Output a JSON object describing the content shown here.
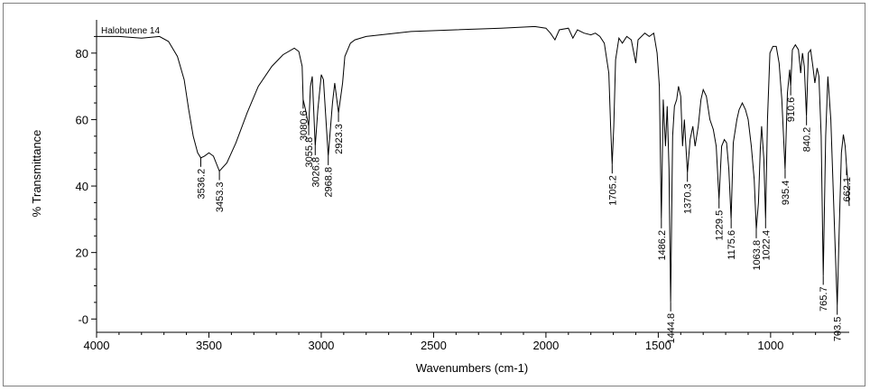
{
  "chart_data": {
    "type": "line",
    "sample_name": "Halobutene 14",
    "xlabel": "Wavenumbers (cm-1)",
    "ylabel": "% Transmittance",
    "xlim": [
      4000,
      650
    ],
    "ylim": [
      -4,
      90
    ],
    "x_ticks": [
      {
        "value": 4000,
        "label": "4000"
      },
      {
        "value": 3500,
        "label": "3500"
      },
      {
        "value": 3000,
        "label": "3000"
      },
      {
        "value": 2500,
        "label": "2500"
      },
      {
        "value": 2000,
        "label": "2000"
      },
      {
        "value": 1500,
        "label": "1500"
      },
      {
        "value": 1000,
        "label": "1000"
      }
    ],
    "y_ticks": [
      {
        "value": 80,
        "label": "80"
      },
      {
        "value": 60,
        "label": "60"
      },
      {
        "value": 40,
        "label": "40"
      },
      {
        "value": 20,
        "label": "20"
      },
      {
        "value": 0,
        "label": "-0"
      }
    ],
    "spectrum": [
      [
        4000,
        85
      ],
      [
        3900,
        85
      ],
      [
        3800,
        84.5
      ],
      [
        3720,
        85
      ],
      [
        3680,
        83.5
      ],
      [
        3640,
        79
      ],
      [
        3610,
        72
      ],
      [
        3590,
        63
      ],
      [
        3570,
        55
      ],
      [
        3550,
        50
      ],
      [
        3536.2,
        48.5
      ],
      [
        3520,
        49
      ],
      [
        3500,
        50
      ],
      [
        3480,
        49
      ],
      [
        3453.3,
        44.5
      ],
      [
        3420,
        47
      ],
      [
        3380,
        53
      ],
      [
        3330,
        62
      ],
      [
        3280,
        70
      ],
      [
        3220,
        76
      ],
      [
        3170,
        79.5
      ],
      [
        3120,
        81.5
      ],
      [
        3100,
        80.5
      ],
      [
        3085,
        76
      ],
      [
        3080.6,
        66
      ],
      [
        3070,
        63
      ],
      [
        3055.8,
        58
      ],
      [
        3048,
        70
      ],
      [
        3040,
        73
      ],
      [
        3026.8,
        52
      ],
      [
        3015,
        63
      ],
      [
        3000,
        73.5
      ],
      [
        2990,
        72
      ],
      [
        2968.8,
        49
      ],
      [
        2950,
        65
      ],
      [
        2940,
        71
      ],
      [
        2923.3,
        62
      ],
      [
        2905,
        71
      ],
      [
        2895,
        79
      ],
      [
        2870,
        83
      ],
      [
        2850,
        84
      ],
      [
        2800,
        85
      ],
      [
        2600,
        86.5
      ],
      [
        2400,
        87
      ],
      [
        2200,
        87.5
      ],
      [
        2050,
        88
      ],
      [
        2000,
        87.5
      ],
      [
        1980,
        86
      ],
      [
        1960,
        84
      ],
      [
        1940,
        87
      ],
      [
        1900,
        87.5
      ],
      [
        1880,
        84.5
      ],
      [
        1860,
        87
      ],
      [
        1830,
        86
      ],
      [
        1800,
        85.5
      ],
      [
        1780,
        86
      ],
      [
        1760,
        85
      ],
      [
        1740,
        83
      ],
      [
        1720,
        74
      ],
      [
        1712,
        58
      ],
      [
        1705.2,
        46.5
      ],
      [
        1698,
        58
      ],
      [
        1690,
        78
      ],
      [
        1675,
        84.5
      ],
      [
        1660,
        83
      ],
      [
        1640,
        85
      ],
      [
        1620,
        84
      ],
      [
        1600,
        77
      ],
      [
        1590,
        84
      ],
      [
        1560,
        86
      ],
      [
        1540,
        85
      ],
      [
        1520,
        86
      ],
      [
        1505,
        80
      ],
      [
        1495,
        70
      ],
      [
        1486.2,
        30
      ],
      [
        1478,
        66
      ],
      [
        1468,
        52
      ],
      [
        1460,
        64
      ],
      [
        1452,
        45
      ],
      [
        1444.8,
        5
      ],
      [
        1436,
        55
      ],
      [
        1428,
        64
      ],
      [
        1418,
        66
      ],
      [
        1410,
        70
      ],
      [
        1400,
        67
      ],
      [
        1392,
        52
      ],
      [
        1384,
        60
      ],
      [
        1370.3,
        44
      ],
      [
        1358,
        54
      ],
      [
        1346,
        58
      ],
      [
        1336,
        52
      ],
      [
        1322,
        58
      ],
      [
        1310,
        66
      ],
      [
        1300,
        69
      ],
      [
        1286,
        67
      ],
      [
        1270,
        60
      ],
      [
        1255,
        57
      ],
      [
        1242,
        52
      ],
      [
        1229.5,
        36
      ],
      [
        1218,
        52
      ],
      [
        1206,
        54
      ],
      [
        1196,
        53
      ],
      [
        1186,
        45
      ],
      [
        1175.6,
        30
      ],
      [
        1166,
        53
      ],
      [
        1150,
        60
      ],
      [
        1140,
        63
      ],
      [
        1126,
        65
      ],
      [
        1112,
        63
      ],
      [
        1100,
        60
      ],
      [
        1086,
        52
      ],
      [
        1073,
        42
      ],
      [
        1063.8,
        27
      ],
      [
        1054,
        35
      ],
      [
        1046,
        51
      ],
      [
        1040,
        58
      ],
      [
        1030,
        48
      ],
      [
        1022.4,
        30
      ],
      [
        1014,
        60
      ],
      [
        1003,
        80
      ],
      [
        990,
        82
      ],
      [
        975,
        82
      ],
      [
        962,
        77
      ],
      [
        950,
        66
      ],
      [
        935.4,
        45
      ],
      [
        925,
        68
      ],
      [
        915,
        75
      ],
      [
        910.6,
        70
      ],
      [
        903,
        81
      ],
      [
        890,
        82.5
      ],
      [
        876,
        81
      ],
      [
        866,
        74
      ],
      [
        858,
        80
      ],
      [
        850,
        76
      ],
      [
        840.2,
        61
      ],
      [
        832,
        80
      ],
      [
        822,
        81
      ],
      [
        812,
        76
      ],
      [
        803,
        71
      ],
      [
        793,
        75.5
      ],
      [
        785,
        73
      ],
      [
        775,
        55
      ],
      [
        765.7,
        13
      ],
      [
        755,
        55
      ],
      [
        745,
        73
      ],
      [
        732,
        60
      ],
      [
        722,
        40
      ],
      [
        712,
        20
      ],
      [
        703.5,
        4
      ],
      [
        694,
        28
      ],
      [
        685,
        50
      ],
      [
        676,
        55.5
      ],
      [
        668,
        52
      ],
      [
        662.1,
        46
      ],
      [
        655,
        40
      ],
      [
        650,
        34
      ]
    ],
    "peak_labels": [
      {
        "x": 3536.2,
        "label": "3536.2"
      },
      {
        "x": 3453.3,
        "label": "3453.3"
      },
      {
        "x": 3080.6,
        "label": "3080.6"
      },
      {
        "x": 3055.8,
        "label": "3055.8"
      },
      {
        "x": 3026.8,
        "label": "3026.8"
      },
      {
        "x": 2968.8,
        "label": "2968.8"
      },
      {
        "x": 2923.3,
        "label": "2923.3"
      },
      {
        "x": 1705.2,
        "label": "1705.2"
      },
      {
        "x": 1486.2,
        "label": "1486.2"
      },
      {
        "x": 1444.8,
        "label": "1444.8"
      },
      {
        "x": 1370.3,
        "label": "1370.3"
      },
      {
        "x": 1229.5,
        "label": "1229.5"
      },
      {
        "x": 1175.6,
        "label": "1175.6"
      },
      {
        "x": 1063.8,
        "label": "1063.8"
      },
      {
        "x": 1022.4,
        "label": "1022.4"
      },
      {
        "x": 935.4,
        "label": "935.4"
      },
      {
        "x": 910.6,
        "label": "910.6"
      },
      {
        "x": 840.2,
        "label": "840.2"
      },
      {
        "x": 765.7,
        "label": "765.7"
      },
      {
        "x": 703.5,
        "label": "703.5"
      },
      {
        "x": 662.1,
        "label": "662.1"
      }
    ],
    "line_color": "#000000",
    "grid": false
  }
}
